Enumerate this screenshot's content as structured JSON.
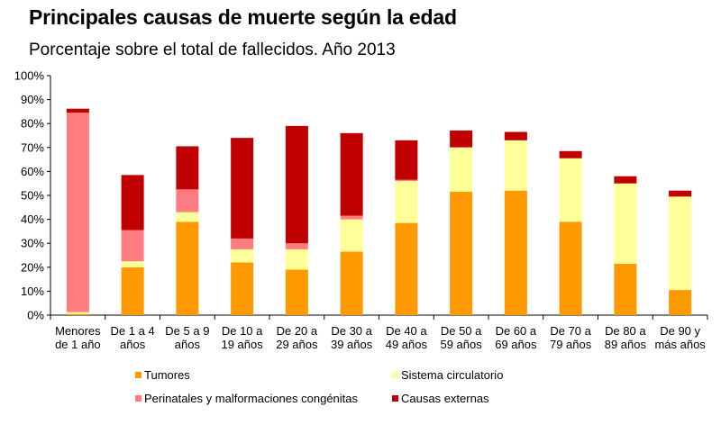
{
  "chart_data": {
    "type": "bar",
    "stacked": true,
    "title": "Principales causas de muerte según la edad",
    "subtitle": "Porcentaje sobre el total de fallecidos. Año 2013",
    "xlabel": "",
    "ylabel": "",
    "ylim": [
      0,
      100
    ],
    "yticks": [
      "0%",
      "10%",
      "20%",
      "30%",
      "40%",
      "50%",
      "60%",
      "70%",
      "80%",
      "90%",
      "100%"
    ],
    "categories": [
      [
        "Menores",
        "de 1 año"
      ],
      [
        "De 1 a 4",
        "años"
      ],
      [
        "De 5 a 9",
        "años"
      ],
      [
        "De 10 a",
        "19 años"
      ],
      [
        "De 20 a",
        "29 años"
      ],
      [
        "De 30 a",
        "39 años"
      ],
      [
        "De 40 a",
        "49 años"
      ],
      [
        "De 50 a",
        "59 años"
      ],
      [
        "De 60 a",
        "69 años"
      ],
      [
        "De 70 a",
        "79 años"
      ],
      [
        "De 80 a",
        "89 años"
      ],
      [
        "De 90 y",
        "más años"
      ]
    ],
    "series": [
      {
        "name": "Tumores",
        "color": "#FF9900",
        "values": [
          0.5,
          20,
          39,
          22,
          19,
          26.5,
          38.5,
          51.5,
          52,
          39,
          21.5,
          10.5
        ]
      },
      {
        "name": "Sistema circulatorio",
        "color": "#FFFF99",
        "values": [
          0.8,
          2.5,
          4,
          5.5,
          8.5,
          13.5,
          17.5,
          18.5,
          21,
          26.5,
          33.5,
          39
        ]
      },
      {
        "name": "Perinatales y malformaciones congénitas",
        "color": "#FF7C80",
        "values": [
          83.2,
          13,
          9.5,
          4.5,
          2.5,
          1.5,
          0.5,
          0.1,
          0,
          0,
          0,
          0
        ]
      },
      {
        "name": "Causas externas",
        "color": "#C00000",
        "values": [
          1.7,
          23,
          18,
          42,
          49,
          34.5,
          16.5,
          7,
          3.5,
          3,
          3,
          2.5
        ]
      }
    ],
    "legend": {
      "placement": "bottom",
      "order": [
        "Tumores",
        "Sistema circulatorio",
        "Perinatales y malformaciones congénitas",
        "Causas externas"
      ]
    }
  }
}
